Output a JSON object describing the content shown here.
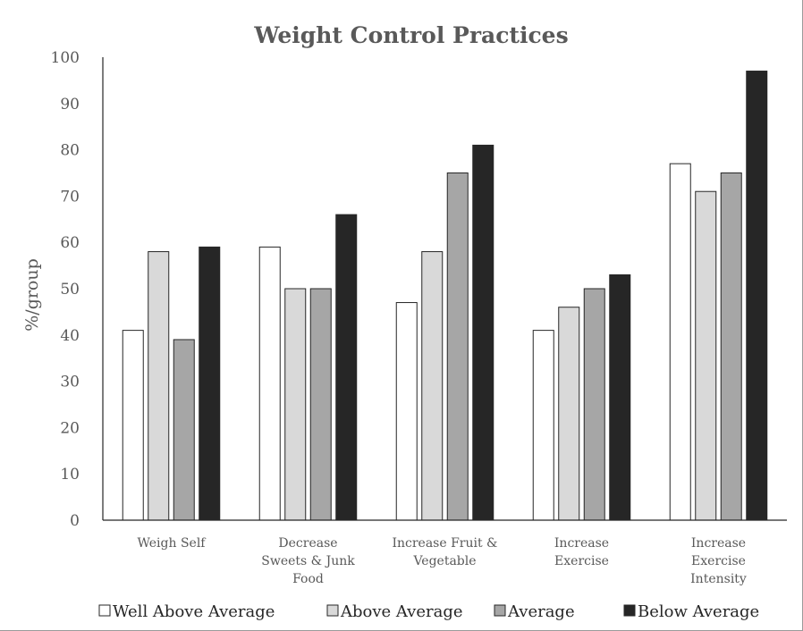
{
  "chart_data": {
    "type": "bar",
    "title": "Weight Control Practices",
    "xlabel": "",
    "ylabel": "%/group",
    "ylim": [
      0,
      100
    ],
    "yticks": [
      0,
      10,
      20,
      30,
      40,
      50,
      60,
      70,
      80,
      90,
      100
    ],
    "grid": false,
    "legend_position": "bottom",
    "categories": [
      [
        "Weigh Self"
      ],
      [
        "Decrease",
        "Sweets & Junk",
        "Food"
      ],
      [
        "Increase Fruit &",
        "Vegetable"
      ],
      [
        "Increase",
        "Exercise"
      ],
      [
        "Increase",
        "Exercise",
        "Intensity"
      ]
    ],
    "series": [
      {
        "name": "Well Above Average",
        "color": "#ffffff",
        "values": [
          41,
          59,
          47,
          41,
          77
        ]
      },
      {
        "name": "Above Average",
        "color": "#d9d9d9",
        "values": [
          58,
          50,
          58,
          46,
          71
        ]
      },
      {
        "name": "Average",
        "color": "#a6a6a6",
        "values": [
          39,
          50,
          75,
          50,
          75
        ]
      },
      {
        "name": "Below Average",
        "color": "#262626",
        "values": [
          59,
          66,
          81,
          53,
          97
        ]
      }
    ]
  }
}
